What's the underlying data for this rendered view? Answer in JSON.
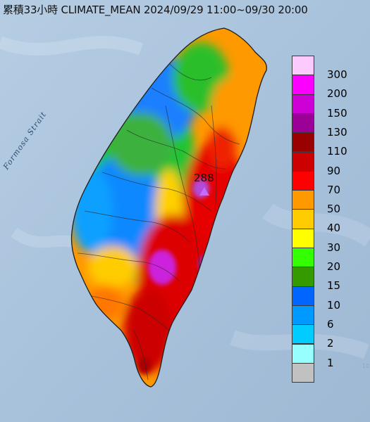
{
  "title": "累積33小時 CLIMATE_MEAN 2024/09/29 11:00~09/30 20:00",
  "sea_label": "Formosa Strait",
  "max_station": {
    "value": "288"
  },
  "edge_text": "10",
  "legend": [
    {
      "label": "300",
      "color": "#fdcafe"
    },
    {
      "label": "200",
      "color": "#fb00ff"
    },
    {
      "label": "150",
      "color": "#cd00d6"
    },
    {
      "label": "130",
      "color": "#9b0097"
    },
    {
      "label": "110",
      "color": "#990000"
    },
    {
      "label": "90",
      "color": "#cc0000"
    },
    {
      "label": "70",
      "color": "#fe0000"
    },
    {
      "label": "50",
      "color": "#fe9900"
    },
    {
      "label": "40",
      "color": "#fecc00"
    },
    {
      "label": "30",
      "color": "#ffff00"
    },
    {
      "label": "20",
      "color": "#33ff00"
    },
    {
      "label": "15",
      "color": "#359a00"
    },
    {
      "label": "10",
      "color": "#0066ff"
    },
    {
      "label": "6",
      "color": "#0099ff"
    },
    {
      "label": "2",
      "color": "#00ccff"
    },
    {
      "label": "1",
      "color": "#98ffff"
    },
    {
      "label": "",
      "color": "#c1c1c1"
    }
  ]
}
